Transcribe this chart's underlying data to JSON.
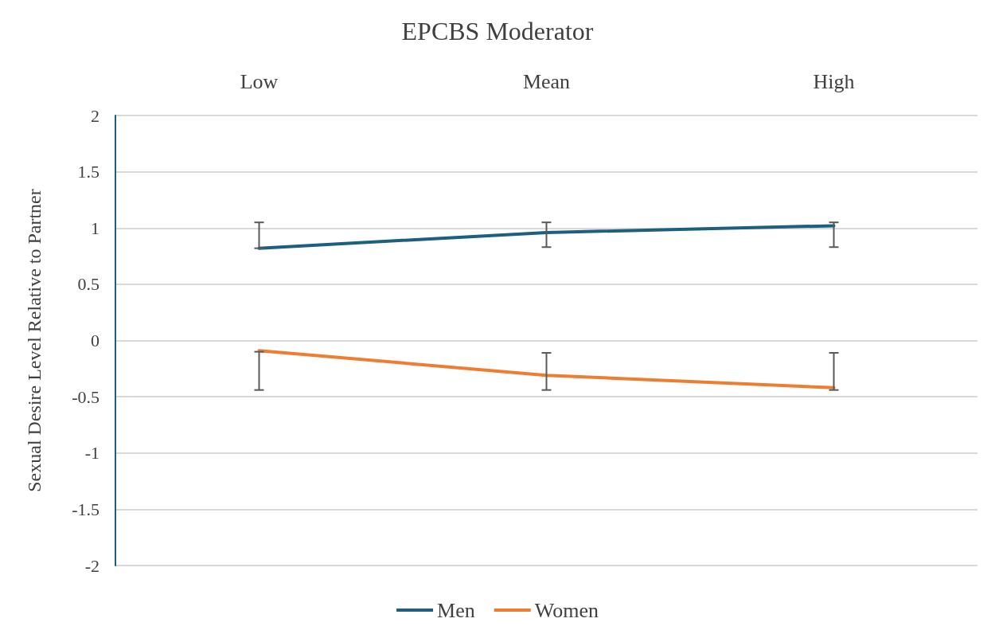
{
  "chart_data": {
    "type": "line",
    "title": "EPCBS Moderator",
    "ylabel": "Sexual Desire Level Relative to Partner",
    "categories": [
      "Low",
      "Mean",
      "High"
    ],
    "series": [
      {
        "name": "Men",
        "color": "#1d5f7f",
        "values": [
          0.82,
          0.96,
          1.02
        ],
        "errors": [
          [
            0.82,
            1.05
          ],
          [
            0.83,
            1.05
          ],
          [
            0.83,
            1.05
          ]
        ]
      },
      {
        "name": "Women",
        "color": "#ed7d31",
        "values": [
          -0.09,
          -0.31,
          -0.42
        ],
        "errors": [
          [
            -0.44,
            -0.1
          ],
          [
            -0.44,
            -0.11
          ],
          [
            -0.44,
            -0.11
          ]
        ]
      }
    ],
    "ylim": [
      -2,
      2
    ],
    "yticks": [
      -2,
      -1.5,
      -1,
      -0.5,
      0,
      0.5,
      1,
      1.5,
      2
    ],
    "grid": "y",
    "legend": "bottom",
    "marker": "none",
    "line_style": "solid"
  }
}
